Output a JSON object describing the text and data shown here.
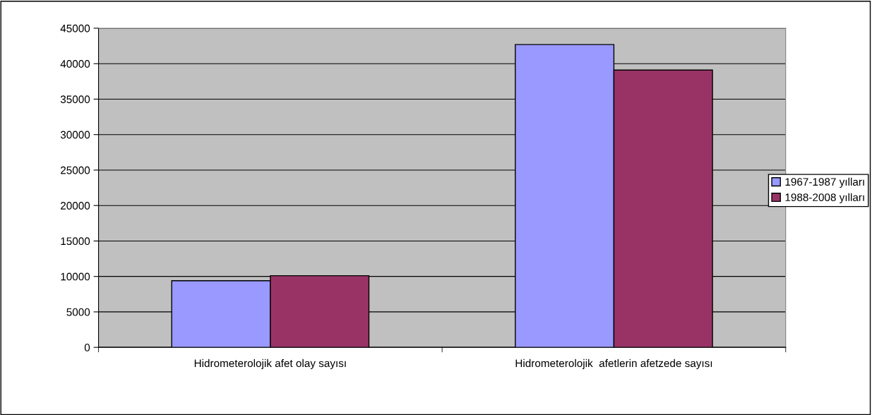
{
  "chart_data": {
    "type": "bar",
    "categories": [
      "Hidrometerolojik afet olay sayısı",
      "Hidrometerolojik  afetlerin afetzede sayısı"
    ],
    "series": [
      {
        "name": "1967-1987 yılları",
        "color": "#9999ff",
        "values": [
          9400,
          42700
        ]
      },
      {
        "name": "1988-2008 yılları",
        "color": "#993366",
        "values": [
          10100,
          39100
        ]
      }
    ],
    "ylim": [
      0,
      45000
    ],
    "yticks": [
      0,
      5000,
      10000,
      15000,
      20000,
      25000,
      30000,
      35000,
      40000,
      45000
    ],
    "grid": "y",
    "legend": "right"
  }
}
